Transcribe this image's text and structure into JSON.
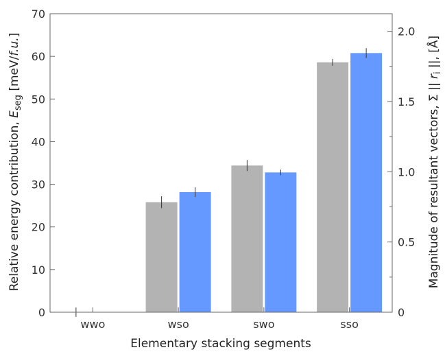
{
  "chart_data": {
    "type": "bar",
    "categories": [
      "wwo",
      "wso",
      "swo",
      "sso"
    ],
    "xlabel": "Elementary stacking segments",
    "ylabel": {
      "main": "Relative energy contribution, ",
      "var": "E",
      "sub": "seg",
      "unit_open": " [meV/",
      "unit_italic": "f.u.",
      "unit_close": "]"
    },
    "y2label": {
      "main": "Magnitude of resultant vectors, Σ || ",
      "var": "r",
      "sub": "i",
      "unit": " ||, [Å]"
    },
    "ylim": [
      0,
      70
    ],
    "y2lim": [
      0,
      2.125
    ],
    "yticks": [
      0,
      10,
      20,
      30,
      40,
      50,
      60,
      70
    ],
    "y2ticks": [
      "0",
      "0.5",
      "1.0",
      "1.5",
      "2.0"
    ],
    "y2tick_values": [
      0,
      0.5,
      1.0,
      1.5,
      2.0
    ],
    "grid": false,
    "legend": "none",
    "series": [
      {
        "axis": "left",
        "color": "#b3b3b3",
        "values": [
          0,
          25.8,
          34.4,
          58.6
        ],
        "errors": [
          1.1,
          1.4,
          1.3,
          0.8
        ]
      },
      {
        "axis": "right",
        "color": "#6699ff",
        "values": [
          0,
          0.855,
          0.995,
          1.845
        ],
        "errors": [
          0,
          0.035,
          0.02,
          0.035
        ]
      }
    ]
  }
}
